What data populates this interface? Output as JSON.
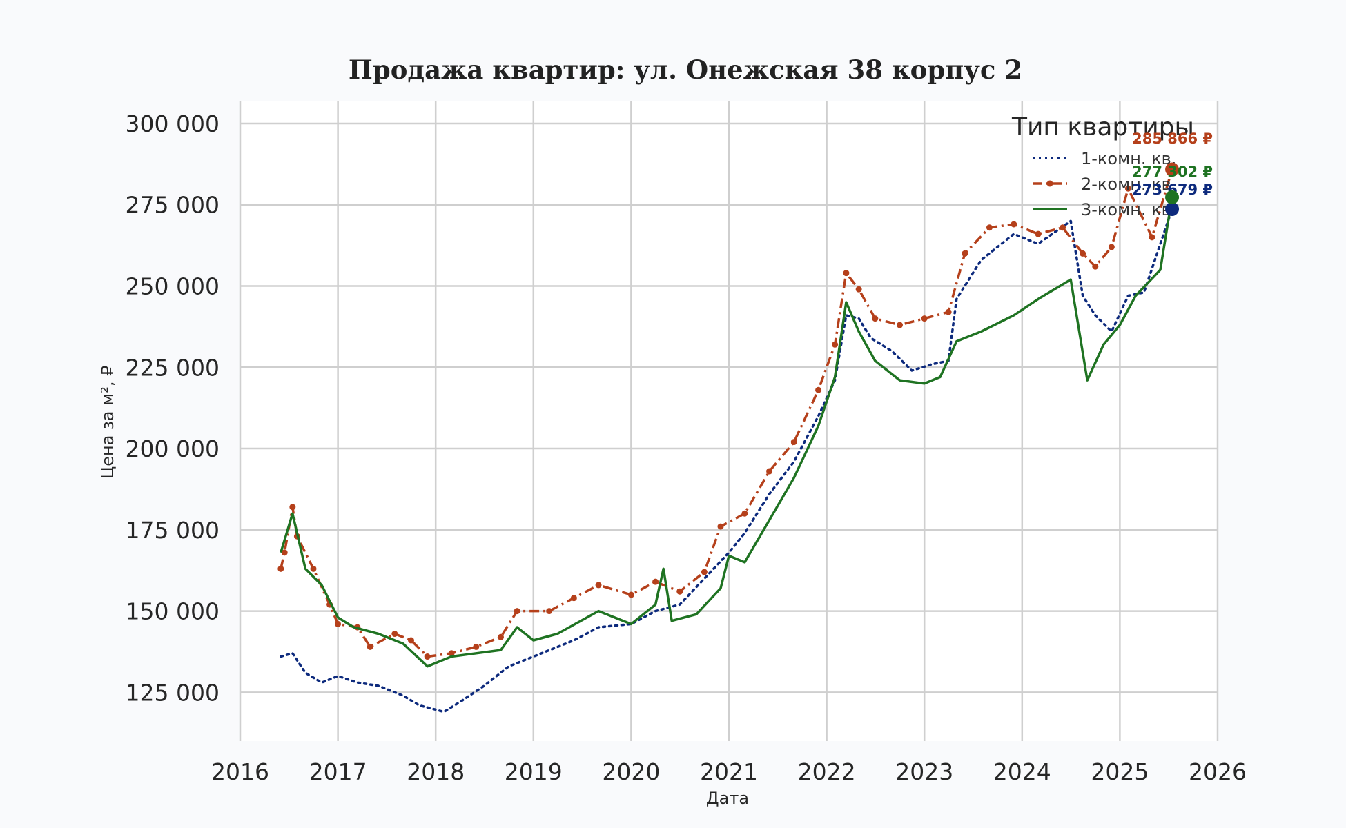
{
  "chart_data": {
    "type": "line",
    "title": "Продажа квартир: ул. Онежская 38 корпус 2",
    "xlabel": "Дата",
    "ylabel": "Цена за м², ₽",
    "x_ticks": [
      "2016",
      "2017",
      "2018",
      "2019",
      "2020",
      "2021",
      "2022",
      "2023",
      "2024",
      "2025",
      "2026"
    ],
    "y_ticks": [
      "125 000",
      "150 000",
      "175 000",
      "200 000",
      "225 000",
      "250 000",
      "275 000",
      "300 000"
    ],
    "xlim": [
      "2016-01-01",
      "2026-01-01"
    ],
    "ylim": [
      110000,
      307000
    ],
    "grid": true,
    "legend": {
      "title": "Тип квартиры",
      "placement": "top-right"
    },
    "series": [
      {
        "name": "1-комн. кв.",
        "color": "#0d2a7d",
        "style": "dotted",
        "end_label": "273 679 ₽",
        "points": [
          [
            "2016-06-01",
            136000
          ],
          [
            "2016-07-15",
            137000
          ],
          [
            "2016-09-01",
            131000
          ],
          [
            "2016-11-01",
            128000
          ],
          [
            "2017-01-01",
            130000
          ],
          [
            "2017-03-15",
            128000
          ],
          [
            "2017-06-01",
            127000
          ],
          [
            "2017-09-01",
            124000
          ],
          [
            "2017-11-01",
            121000
          ],
          [
            "2018-02-01",
            119000
          ],
          [
            "2018-04-01",
            122000
          ],
          [
            "2018-07-01",
            127000
          ],
          [
            "2018-10-01",
            133000
          ],
          [
            "2019-01-01",
            136000
          ],
          [
            "2019-06-01",
            141000
          ],
          [
            "2019-09-01",
            145000
          ],
          [
            "2020-01-01",
            146000
          ],
          [
            "2020-04-01",
            150000
          ],
          [
            "2020-07-01",
            152000
          ],
          [
            "2020-10-01",
            160000
          ],
          [
            "2021-01-01",
            168000
          ],
          [
            "2021-03-01",
            174000
          ],
          [
            "2021-06-01",
            186000
          ],
          [
            "2021-09-01",
            196000
          ],
          [
            "2021-12-01",
            210000
          ],
          [
            "2022-02-01",
            221000
          ],
          [
            "2022-03-15",
            241000
          ],
          [
            "2022-05-01",
            240000
          ],
          [
            "2022-06-15",
            234000
          ],
          [
            "2022-09-01",
            230000
          ],
          [
            "2022-11-15",
            224000
          ],
          [
            "2023-02-01",
            226000
          ],
          [
            "2023-04-01",
            227000
          ],
          [
            "2023-05-01",
            246000
          ],
          [
            "2023-08-01",
            258000
          ],
          [
            "2023-12-01",
            266000
          ],
          [
            "2024-03-01",
            263000
          ],
          [
            "2024-07-01",
            270000
          ],
          [
            "2024-08-15",
            247000
          ],
          [
            "2024-10-01",
            241000
          ],
          [
            "2024-12-01",
            236000
          ],
          [
            "2025-02-01",
            247000
          ],
          [
            "2025-04-01",
            248000
          ],
          [
            "2025-07-15",
            273679
          ]
        ]
      },
      {
        "name": "2-комн. кв.",
        "color": "#b5401b",
        "style": "dashdot-markers",
        "end_label": "285 866 ₽",
        "points": [
          [
            "2016-06-01",
            163000
          ],
          [
            "2016-06-15",
            168000
          ],
          [
            "2016-07-15",
            182000
          ],
          [
            "2016-08-01",
            173000
          ],
          [
            "2016-10-01",
            163000
          ],
          [
            "2016-12-01",
            152000
          ],
          [
            "2017-01-01",
            146000
          ],
          [
            "2017-03-15",
            145000
          ],
          [
            "2017-05-01",
            139000
          ],
          [
            "2017-08-01",
            143000
          ],
          [
            "2017-10-01",
            141000
          ],
          [
            "2017-12-01",
            136000
          ],
          [
            "2018-03-01",
            137000
          ],
          [
            "2018-06-01",
            139000
          ],
          [
            "2018-09-01",
            142000
          ],
          [
            "2018-11-01",
            150000
          ],
          [
            "2019-03-01",
            150000
          ],
          [
            "2019-06-01",
            154000
          ],
          [
            "2019-09-01",
            158000
          ],
          [
            "2020-01-01",
            155000
          ],
          [
            "2020-04-01",
            159000
          ],
          [
            "2020-07-01",
            156000
          ],
          [
            "2020-10-01",
            162000
          ],
          [
            "2020-12-01",
            176000
          ],
          [
            "2021-03-01",
            180000
          ],
          [
            "2021-06-01",
            193000
          ],
          [
            "2021-09-01",
            202000
          ],
          [
            "2021-12-01",
            218000
          ],
          [
            "2022-02-01",
            232000
          ],
          [
            "2022-03-15",
            254000
          ],
          [
            "2022-05-01",
            249000
          ],
          [
            "2022-07-01",
            240000
          ],
          [
            "2022-10-01",
            238000
          ],
          [
            "2023-01-01",
            240000
          ],
          [
            "2023-04-01",
            242000
          ],
          [
            "2023-06-01",
            260000
          ],
          [
            "2023-09-01",
            268000
          ],
          [
            "2023-12-01",
            269000
          ],
          [
            "2024-03-01",
            266000
          ],
          [
            "2024-06-01",
            268000
          ],
          [
            "2024-08-15",
            260000
          ],
          [
            "2024-10-01",
            256000
          ],
          [
            "2024-12-01",
            262000
          ],
          [
            "2025-02-01",
            280000
          ],
          [
            "2025-05-01",
            265000
          ],
          [
            "2025-07-15",
            285866
          ]
        ]
      },
      {
        "name": "3-комн. кв.",
        "color": "#1f7322",
        "style": "solid",
        "end_label": "277 302 ₽",
        "points": [
          [
            "2016-06-01",
            168000
          ],
          [
            "2016-07-15",
            180000
          ],
          [
            "2016-09-01",
            163000
          ],
          [
            "2016-11-01",
            158000
          ],
          [
            "2017-01-01",
            148000
          ],
          [
            "2017-03-01",
            145000
          ],
          [
            "2017-06-01",
            143000
          ],
          [
            "2017-09-01",
            140000
          ],
          [
            "2017-12-01",
            133000
          ],
          [
            "2018-03-01",
            136000
          ],
          [
            "2018-06-01",
            137000
          ],
          [
            "2018-09-01",
            138000
          ],
          [
            "2018-11-01",
            145000
          ],
          [
            "2019-01-01",
            141000
          ],
          [
            "2019-04-01",
            143000
          ],
          [
            "2019-09-01",
            150000
          ],
          [
            "2020-01-01",
            146000
          ],
          [
            "2020-04-01",
            152000
          ],
          [
            "2020-05-01",
            163000
          ],
          [
            "2020-06-01",
            147000
          ],
          [
            "2020-09-01",
            149000
          ],
          [
            "2020-12-01",
            157000
          ],
          [
            "2021-01-01",
            167000
          ],
          [
            "2021-03-01",
            165000
          ],
          [
            "2021-06-01",
            178000
          ],
          [
            "2021-09-01",
            191000
          ],
          [
            "2021-12-01",
            207000
          ],
          [
            "2022-02-01",
            222000
          ],
          [
            "2022-03-15",
            245000
          ],
          [
            "2022-05-01",
            236000
          ],
          [
            "2022-07-01",
            227000
          ],
          [
            "2022-10-01",
            221000
          ],
          [
            "2023-01-01",
            220000
          ],
          [
            "2023-03-01",
            222000
          ],
          [
            "2023-05-01",
            233000
          ],
          [
            "2023-08-01",
            236000
          ],
          [
            "2023-12-01",
            241000
          ],
          [
            "2024-03-01",
            246000
          ],
          [
            "2024-07-01",
            252000
          ],
          [
            "2024-09-01",
            221000
          ],
          [
            "2024-11-01",
            232000
          ],
          [
            "2025-01-01",
            238000
          ],
          [
            "2025-03-01",
            247000
          ],
          [
            "2025-06-01",
            255000
          ],
          [
            "2025-07-15",
            277302
          ]
        ]
      }
    ]
  }
}
